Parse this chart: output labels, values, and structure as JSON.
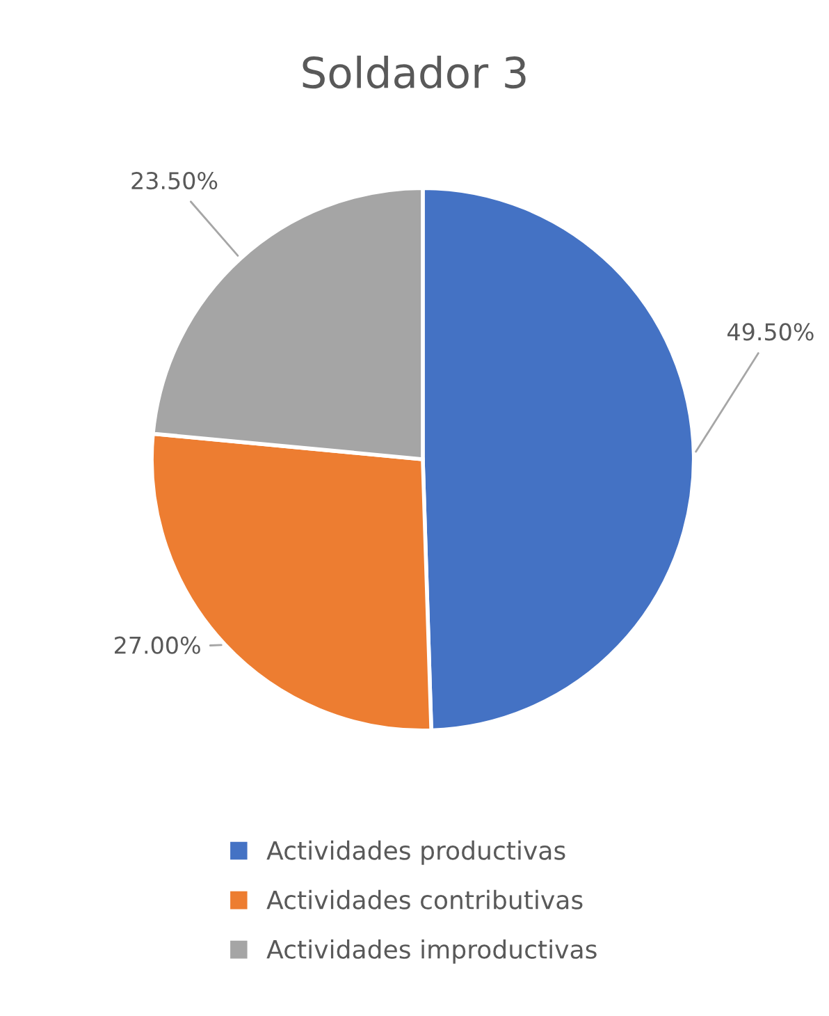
{
  "chart_data": {
    "type": "pie",
    "title": "Soldador 3",
    "categories": [
      "Actividades productivas",
      "Actividades contributivas",
      "Actividades improductivas"
    ],
    "values": [
      49.5,
      27.0,
      23.5
    ],
    "colors": [
      "#4472c4",
      "#ed7d31",
      "#a5a5a5"
    ],
    "value_labels": [
      "49.50%",
      "27.00%",
      "23.50%"
    ],
    "legend": "bottom"
  }
}
